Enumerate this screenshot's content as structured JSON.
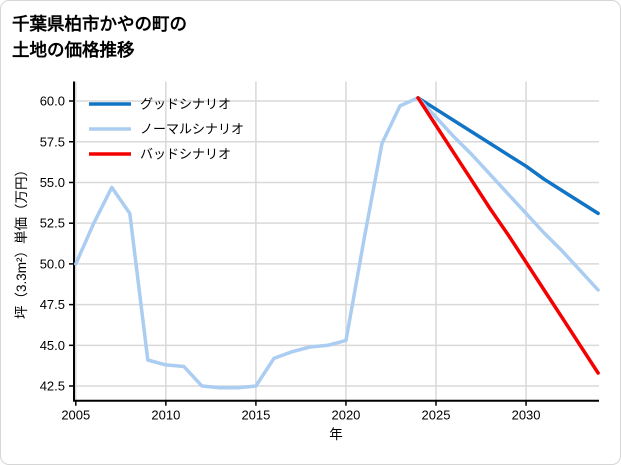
{
  "header": {
    "title_line1": "千葉県柏市かやの町の",
    "title_line2": "土地の価格推移"
  },
  "chart_data": {
    "type": "line",
    "title": "千葉県柏市かやの町の土地の価格推移",
    "xlabel": "年",
    "ylabel": "坪（3.3m²）単価（万円）",
    "xlim": [
      2004.9,
      2034.05
    ],
    "ylim": [
      41.6,
      61.2
    ],
    "xticks": [
      2005,
      2010,
      2015,
      2020,
      2025,
      2030
    ],
    "yticks": [
      42.5,
      45.0,
      47.5,
      50.0,
      52.5,
      55.0,
      57.5,
      60.0
    ],
    "grid": true,
    "legend_position": "upper-left",
    "colors": {
      "good": "#1274c5",
      "normal": "#abcdf1",
      "bad": "#f50000",
      "gridline": "#d9d9d9",
      "spine": "#000000"
    },
    "series": [
      {
        "id": "historical",
        "name": null,
        "in_legend": false,
        "color": "#abcdf1",
        "x": [
          2005,
          2006,
          2007,
          2008,
          2009,
          2010,
          2011,
          2012,
          2013,
          2014,
          2015,
          2016,
          2017,
          2018,
          2019,
          2020,
          2021,
          2022,
          2023,
          2024
        ],
        "values": [
          50.0,
          52.5,
          54.7,
          53.1,
          44.1,
          43.8,
          43.7,
          42.5,
          42.4,
          42.4,
          42.5,
          44.2,
          44.6,
          44.9,
          45.0,
          45.3,
          51.5,
          57.4,
          59.7,
          60.2
        ]
      },
      {
        "id": "good",
        "name": "グッドシナリオ",
        "in_legend": true,
        "color": "#1274c5",
        "x": [
          2024,
          2025,
          2026,
          2027,
          2028,
          2029,
          2030,
          2031,
          2032,
          2033,
          2034
        ],
        "values": [
          60.2,
          59.5,
          58.8,
          58.1,
          57.4,
          56.7,
          56.0,
          55.2,
          54.5,
          53.8,
          53.1
        ]
      },
      {
        "id": "normal",
        "name": "ノーマルシナリオ",
        "in_legend": true,
        "color": "#abcdf1",
        "x": [
          2024,
          2025,
          2026,
          2027,
          2028,
          2029,
          2030,
          2031,
          2032,
          2033,
          2034
        ],
        "values": [
          60.2,
          59.0,
          57.8,
          56.7,
          55.5,
          54.3,
          53.1,
          51.9,
          50.8,
          49.6,
          48.4
        ]
      },
      {
        "id": "bad",
        "name": "バッドシナリオ",
        "in_legend": true,
        "color": "#f50000",
        "x": [
          2024,
          2025,
          2026,
          2027,
          2028,
          2029,
          2030,
          2031,
          2032,
          2033,
          2034
        ],
        "values": [
          60.2,
          58.5,
          56.8,
          55.1,
          53.4,
          51.8,
          50.1,
          48.4,
          46.7,
          45.0,
          43.3
        ]
      }
    ]
  }
}
